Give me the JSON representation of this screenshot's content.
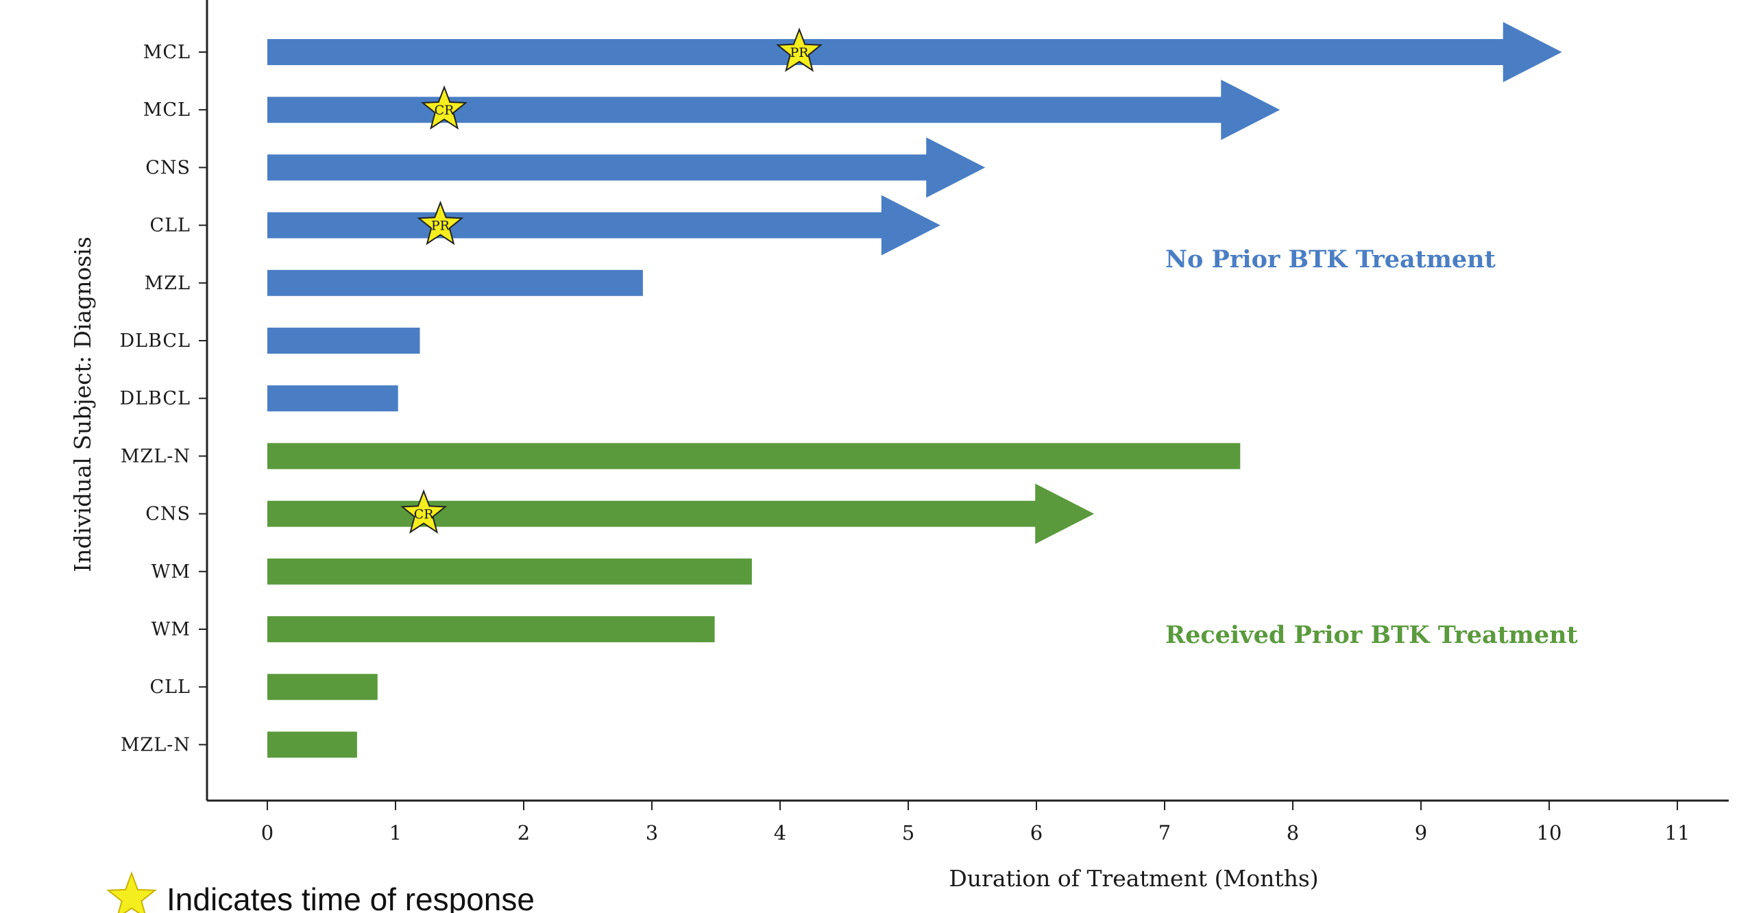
{
  "chart_data": {
    "type": "bar",
    "orientation": "horizontal",
    "xlabel": "Duration of Treatment (Months)",
    "ylabel": "Individual Subject: Diagnosis",
    "xlim": [
      0,
      11
    ],
    "xticks": [
      0,
      1,
      2,
      3,
      4,
      5,
      6,
      7,
      8,
      9,
      10,
      11
    ],
    "grid": false,
    "groups": [
      {
        "label": "No Prior BTK Treatment",
        "color": "#4a7ec4"
      },
      {
        "label": "Received Prior BTK Treatment",
        "color": "#5a9a3c"
      }
    ],
    "subjects": [
      {
        "diagnosis": "MCL",
        "duration": 10.1,
        "group": 0,
        "ongoing": true,
        "response": {
          "type": "PR",
          "time": 4.15
        }
      },
      {
        "diagnosis": "MCL",
        "duration": 7.9,
        "group": 0,
        "ongoing": true,
        "response": {
          "type": "CR",
          "time": 1.38
        }
      },
      {
        "diagnosis": "CNS",
        "duration": 5.6,
        "group": 0,
        "ongoing": true,
        "response": null
      },
      {
        "diagnosis": "CLL",
        "duration": 5.25,
        "group": 0,
        "ongoing": true,
        "response": {
          "type": "PR",
          "time": 1.35
        }
      },
      {
        "diagnosis": "MZL",
        "duration": 2.93,
        "group": 0,
        "ongoing": false,
        "response": null
      },
      {
        "diagnosis": "DLBCL",
        "duration": 1.19,
        "group": 0,
        "ongoing": false,
        "response": null
      },
      {
        "diagnosis": "DLBCL",
        "duration": 1.02,
        "group": 0,
        "ongoing": false,
        "response": null
      },
      {
        "diagnosis": "MZL-N",
        "duration": 7.59,
        "group": 1,
        "ongoing": false,
        "response": null
      },
      {
        "diagnosis": "CNS",
        "duration": 6.45,
        "group": 1,
        "ongoing": true,
        "response": {
          "type": "CR",
          "time": 1.22
        }
      },
      {
        "diagnosis": "WM",
        "duration": 3.78,
        "group": 1,
        "ongoing": false,
        "response": null
      },
      {
        "diagnosis": "WM",
        "duration": 3.49,
        "group": 1,
        "ongoing": false,
        "response": null
      },
      {
        "diagnosis": "CLL",
        "duration": 0.86,
        "group": 1,
        "ongoing": false,
        "response": null
      },
      {
        "diagnosis": "MZL-N",
        "duration": 0.7,
        "group": 1,
        "ongoing": false,
        "response": null
      }
    ],
    "star_color": "#f5ee1e",
    "legend": {
      "text": "Indicates time of response",
      "position": "bottom-left"
    }
  }
}
